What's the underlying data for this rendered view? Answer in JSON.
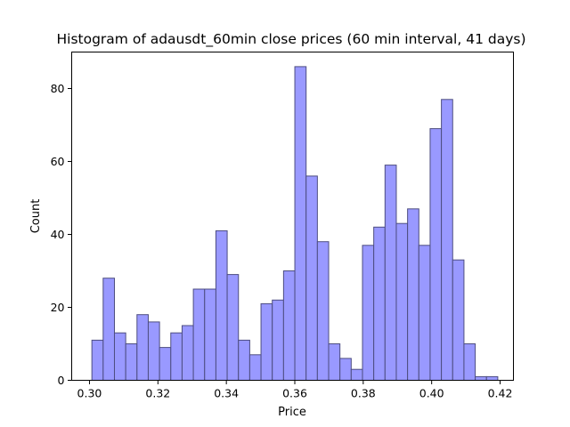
{
  "chart_data": {
    "type": "bar",
    "title": "Histogram of adausdt_60min close prices (60 min interval, 41 days)",
    "xlabel": "Price",
    "ylabel": "Count",
    "xlim": [
      0.2948,
      0.4239
    ],
    "ylim": [
      0,
      90
    ],
    "x_ticks": [
      "0.30",
      "0.32",
      "0.34",
      "0.36",
      "0.38",
      "0.40",
      "0.42"
    ],
    "x_tick_values": [
      0.3,
      0.32,
      0.34,
      0.36,
      0.38,
      0.4,
      0.42
    ],
    "y_ticks": [
      "0",
      "20",
      "40",
      "60",
      "80"
    ],
    "y_tick_values": [
      0,
      20,
      40,
      60,
      80
    ],
    "bin_start": 0.3007,
    "bin_width": 0.003295,
    "values": [
      11,
      28,
      13,
      10,
      18,
      16,
      9,
      13,
      15,
      25,
      25,
      41,
      29,
      11,
      7,
      21,
      22,
      30,
      86,
      56,
      38,
      10,
      6,
      3,
      37,
      42,
      59,
      43,
      47,
      37,
      69,
      77,
      33,
      10,
      1,
      1
    ],
    "bar_color": "#9999ff",
    "edge_color": "#4d4d80",
    "grid": false,
    "legend": "none"
  }
}
